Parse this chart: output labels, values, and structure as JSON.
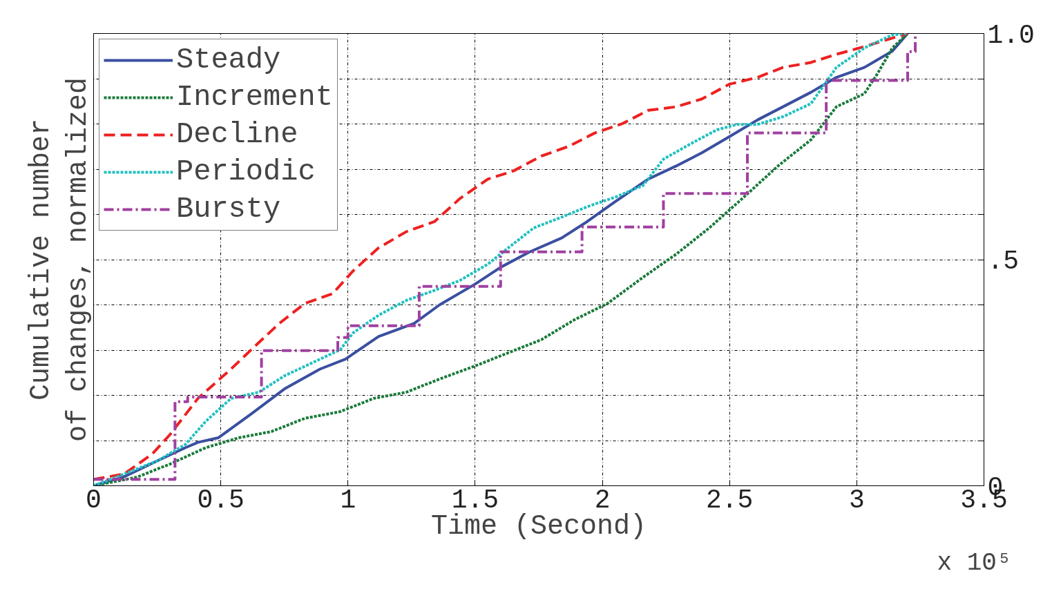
{
  "chart_data": {
    "type": "line",
    "xlabel": "Time (Second)",
    "ylabel": "Cumulative number\nof changes, normalized",
    "annotations": [
      "x 10⁵"
    ],
    "xlim": [
      0,
      3.5
    ],
    "ylim": [
      0,
      1
    ],
    "xticks": [
      0,
      {
        "value": 0.5,
        "label": "0.5"
      },
      1,
      {
        "value": 1.5,
        "label": "1.5"
      },
      2,
      {
        "value": 2.5,
        "label": "2.5"
      },
      3,
      {
        "value": 3.5,
        "label": "3.5"
      }
    ],
    "yticks": [
      0,
      {
        "value": 0.1,
        "label": null
      },
      {
        "value": 0.2,
        "label": null
      },
      {
        "value": 0.3,
        "label": null
      },
      {
        "value": 0.4,
        "label": null
      },
      {
        "value": 0.5,
        "label": ".5"
      },
      {
        "value": 0.6,
        "label": null
      },
      {
        "value": 0.7,
        "label": null
      },
      {
        "value": 0.8,
        "label": null
      },
      {
        "value": 0.9,
        "label": null
      },
      {
        "value": 1.0,
        "label": "1.0"
      }
    ],
    "grid": true,
    "legend": "top left",
    "series": [
      {
        "name": "Steady",
        "color": "#3a4fa0",
        "line_style": "solid",
        "x": [
          0,
          0.12,
          0.25,
          0.36,
          0.41,
          0.49,
          0.62,
          0.75,
          0.89,
          0.99,
          1.12,
          1.26,
          1.36,
          1.5,
          1.6,
          1.71,
          1.84,
          1.94,
          2.05,
          2.18,
          2.29,
          2.39,
          2.5,
          2.61,
          2.71,
          2.82,
          2.92,
          3.03,
          3.14,
          3.2
        ],
        "values": [
          0,
          0.02,
          0.055,
          0.084,
          0.096,
          0.106,
          0.159,
          0.214,
          0.258,
          0.28,
          0.33,
          0.359,
          0.4,
          0.446,
          0.483,
          0.516,
          0.548,
          0.584,
          0.628,
          0.678,
          0.707,
          0.736,
          0.772,
          0.809,
          0.838,
          0.87,
          0.903,
          0.925,
          0.961,
          1.0
        ]
      },
      {
        "name": "Increment",
        "color": "#1a7a3a",
        "line_style": "dotted",
        "x": [
          0,
          0.17,
          0.3,
          0.44,
          0.57,
          0.7,
          0.83,
          0.97,
          1.1,
          1.23,
          1.36,
          1.5,
          1.63,
          1.76,
          1.89,
          2.02,
          2.16,
          2.29,
          2.42,
          2.55,
          2.69,
          2.82,
          2.92,
          3.03,
          3.08,
          3.14,
          3.2
        ],
        "values": [
          0,
          0.019,
          0.048,
          0.084,
          0.106,
          0.12,
          0.149,
          0.164,
          0.193,
          0.207,
          0.236,
          0.265,
          0.294,
          0.323,
          0.367,
          0.403,
          0.461,
          0.512,
          0.57,
          0.635,
          0.707,
          0.765,
          0.838,
          0.867,
          0.91,
          0.968,
          1.0
        ]
      },
      {
        "name": "Decline",
        "color": "#ee2020",
        "line_style": "dashed",
        "x": [
          0,
          0.12,
          0.23,
          0.3,
          0.41,
          0.54,
          0.62,
          0.73,
          0.83,
          0.94,
          1.02,
          1.12,
          1.23,
          1.34,
          1.44,
          1.55,
          1.65,
          1.76,
          1.87,
          1.97,
          2.08,
          2.18,
          2.29,
          2.39,
          2.5,
          2.61,
          2.71,
          2.82,
          2.92,
          3.03,
          3.14,
          3.2
        ],
        "values": [
          0.014,
          0.026,
          0.07,
          0.113,
          0.193,
          0.258,
          0.301,
          0.359,
          0.403,
          0.425,
          0.475,
          0.526,
          0.562,
          0.584,
          0.635,
          0.678,
          0.696,
          0.729,
          0.751,
          0.78,
          0.801,
          0.83,
          0.838,
          0.855,
          0.888,
          0.903,
          0.925,
          0.936,
          0.954,
          0.971,
          0.99,
          1.0
        ]
      },
      {
        "name": "Periodic",
        "color": "#20c0c0",
        "line_style": "dotted",
        "x": [
          0,
          0.12,
          0.25,
          0.36,
          0.44,
          0.54,
          0.65,
          0.75,
          0.86,
          0.97,
          1.02,
          1.12,
          1.23,
          1.34,
          1.44,
          1.55,
          1.63,
          1.73,
          1.84,
          1.94,
          2.05,
          2.16,
          2.24,
          2.34,
          2.45,
          2.53,
          2.61,
          2.71,
          2.82,
          2.92,
          3.03,
          3.14,
          3.2
        ],
        "values": [
          0,
          0.026,
          0.055,
          0.091,
          0.142,
          0.193,
          0.207,
          0.243,
          0.272,
          0.301,
          0.338,
          0.377,
          0.41,
          0.432,
          0.454,
          0.49,
          0.526,
          0.57,
          0.594,
          0.617,
          0.638,
          0.664,
          0.722,
          0.754,
          0.787,
          0.799,
          0.799,
          0.816,
          0.845,
          0.925,
          0.968,
          0.997,
          1.0
        ]
      },
      {
        "name": "Bursty",
        "type": "step",
        "color": "#a040a0",
        "line_style": "dashdot",
        "x": [
          0,
          0.32,
          0.37,
          0.66,
          0.96,
          1.0,
          1.28,
          1.6,
          1.92,
          2.24,
          2.57,
          2.88,
          3.2,
          3.23
        ],
        "values": [
          0.014,
          0.186,
          0.196,
          0.299,
          0.328,
          0.354,
          0.441,
          0.517,
          0.572,
          0.646,
          0.78,
          0.896,
          0.96,
          1.0
        ]
      }
    ]
  }
}
